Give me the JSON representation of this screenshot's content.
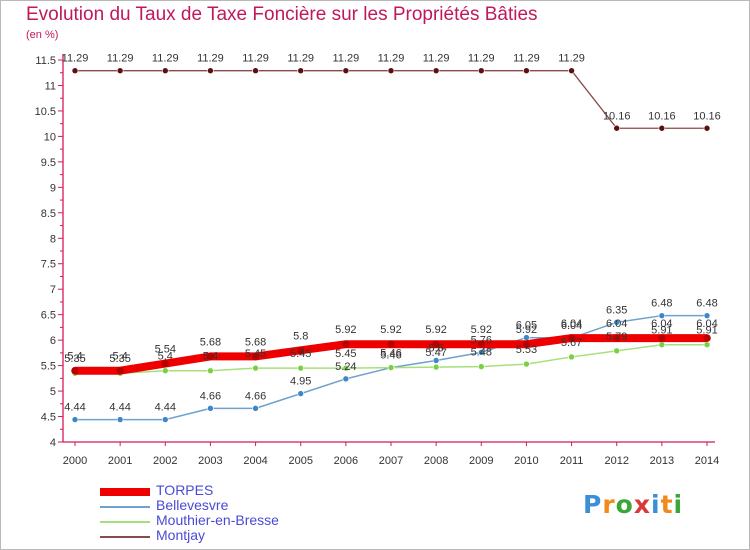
{
  "header": {
    "title": "Evolution du Taux de Taxe Foncière sur les Propriétés Bâties",
    "unit": "(en %)"
  },
  "logo": {
    "letters": [
      "P",
      "r",
      "o",
      "x",
      "i",
      "t",
      "i"
    ],
    "colors": [
      "#3a8fd6",
      "#f08a1a",
      "#3aa63a",
      "#d63a3a",
      "#3a8fd6",
      "#f08a1a",
      "#3aa63a"
    ]
  },
  "chart_data": {
    "type": "line",
    "title": "Evolution du Taux de Taxe Foncière sur les Propriétés Bâties",
    "ylabel": "(en %)",
    "xlabel": "",
    "ylim": [
      4,
      11.5
    ],
    "yticks": [
      4,
      4.5,
      5,
      5.5,
      6,
      6.5,
      7,
      7.5,
      8,
      8.5,
      9,
      9.5,
      10,
      10.5,
      11,
      11.5
    ],
    "ytick_labels": [
      "4",
      "4.5",
      "5",
      "5.5",
      "6",
      "6.5",
      "7",
      "7.5",
      "8",
      "8.5",
      "9",
      "9.5",
      "10",
      "10.5",
      "11",
      "11.5"
    ],
    "x": [
      "2000",
      "2001",
      "2002",
      "2003",
      "2004",
      "2005",
      "2006",
      "2007",
      "2008",
      "2009",
      "2010",
      "2011",
      "2012",
      "2013",
      "2014"
    ],
    "legend_position": "bottom-left",
    "series": [
      {
        "name": "TORPES",
        "color": "#ee0000",
        "marker": "#b80000",
        "values": [
          5.4,
          5.4,
          5.54,
          5.68,
          5.68,
          5.8,
          5.92,
          5.92,
          5.92,
          5.92,
          5.92,
          6.04,
          6.04,
          6.04,
          6.04
        ],
        "labels": [
          "5.4",
          "5.4",
          "5.54",
          "5.68",
          "5.68",
          "5.8",
          "5.92",
          "5.92",
          "5.92",
          "5.92",
          "5.92",
          "6.04",
          "6.04",
          "6.04",
          "6.04"
        ]
      },
      {
        "name": "Bellevesvre",
        "color": "#6fa1cc",
        "marker": "#3b87c8",
        "values": [
          4.44,
          4.44,
          4.44,
          4.66,
          4.66,
          4.95,
          5.24,
          5.46,
          5.6,
          5.76,
          6.05,
          6.04,
          6.35,
          6.48,
          6.48
        ],
        "labels": [
          "4.44",
          "4.44",
          "4.44",
          "4.66",
          "4.66",
          "4.95",
          "5.24",
          "5.46",
          "5.6",
          "5.76",
          "6.05",
          "6.04",
          "6.35",
          "6.48",
          "6.48"
        ]
      },
      {
        "name": "Mouthier-en-Bresse",
        "color": "#a6e07a",
        "marker": "#7bd042",
        "values": [
          5.35,
          5.35,
          5.4,
          5.4,
          5.45,
          5.45,
          5.45,
          5.46,
          5.47,
          5.48,
          5.53,
          5.67,
          5.79,
          5.91,
          5.91
        ],
        "labels": [
          "5.35",
          "5.35",
          "5.4",
          "5.4",
          "5.45",
          "5.45",
          "5.45",
          "5.46",
          "5.47",
          "5.48",
          "5.53",
          "5.67",
          "5.79",
          "5.91",
          "5.91"
        ]
      },
      {
        "name": "Montjay",
        "color": "#8a4a4a",
        "marker": "#5a1010",
        "values": [
          11.29,
          11.29,
          11.29,
          11.29,
          11.29,
          11.29,
          11.29,
          11.29,
          11.29,
          11.29,
          11.29,
          11.29,
          10.16,
          10.16,
          10.16
        ],
        "labels": [
          "11.29",
          "11.29",
          "11.29",
          "11.29",
          "11.29",
          "11.29",
          "11.29",
          "11.29",
          "11.29",
          "11.29",
          "11.29",
          "11.29",
          "10.16",
          "10.16",
          "10.16"
        ]
      }
    ]
  }
}
